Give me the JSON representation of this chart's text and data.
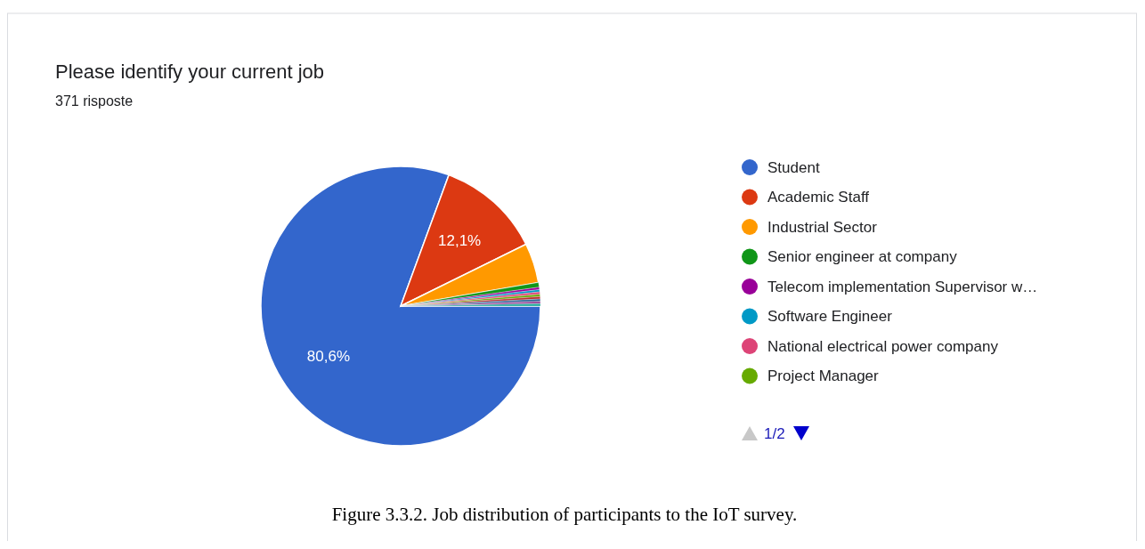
{
  "chart_data": {
    "type": "pie",
    "title": "Please identify your current job",
    "subtitle": "371 risposte",
    "categories": [
      "Student",
      "Academic Staff",
      "Industrial Sector",
      "Senior engineer at company",
      "Telecom implementation Supervisor w…",
      "Software Engineer",
      "National electrical power company",
      "Project Manager",
      null,
      null,
      null,
      null
    ],
    "values": [
      80.6,
      12.1,
      4.6,
      0.54,
      0.27,
      0.27,
      0.27,
      0.27,
      0.27,
      0.27,
      0.27,
      0.27
    ],
    "colors": [
      "#3366cc",
      "#dc3912",
      "#ff9900",
      "#109618",
      "#990099",
      "#0099c6",
      "#dd4477",
      "#66aa00",
      "#b82e2e",
      "#316395",
      "#994499",
      "#22aa99"
    ],
    "value_labels": [
      "80,6%",
      "12,1%",
      null,
      null,
      null,
      null,
      null,
      null,
      null,
      null,
      null,
      null
    ],
    "legend": "right",
    "annotations": [
      "1/2",
      "Figure 3.3.2. Job distribution of participants to the IoT survey."
    ]
  }
}
